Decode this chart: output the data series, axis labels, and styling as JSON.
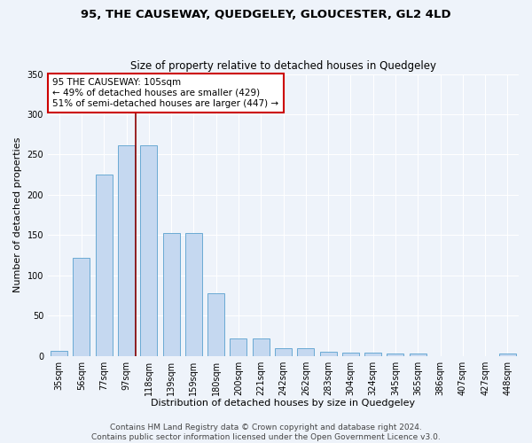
{
  "title": "95, THE CAUSEWAY, QUEDGELEY, GLOUCESTER, GL2 4LD",
  "subtitle": "Size of property relative to detached houses in Quedgeley",
  "xlabel": "Distribution of detached houses by size in Quedgeley",
  "ylabel": "Number of detached properties",
  "categories": [
    "35sqm",
    "56sqm",
    "77sqm",
    "97sqm",
    "118sqm",
    "139sqm",
    "159sqm",
    "180sqm",
    "200sqm",
    "221sqm",
    "242sqm",
    "262sqm",
    "283sqm",
    "304sqm",
    "324sqm",
    "345sqm",
    "365sqm",
    "386sqm",
    "407sqm",
    "427sqm",
    "448sqm"
  ],
  "values": [
    6,
    122,
    225,
    261,
    261,
    153,
    153,
    78,
    22,
    22,
    9,
    9,
    5,
    4,
    4,
    3,
    3,
    0,
    0,
    0,
    3
  ],
  "bar_color": "#c5d8f0",
  "bar_edge_color": "#6aaad4",
  "vline_color": "#8b0000",
  "vline_x": 3.42,
  "annotation_text": "95 THE CAUSEWAY: 105sqm\n← 49% of detached houses are smaller (429)\n51% of semi-detached houses are larger (447) →",
  "annotation_box_color": "white",
  "annotation_box_edge_color": "#cc0000",
  "ylim": [
    0,
    350
  ],
  "yticks": [
    0,
    50,
    100,
    150,
    200,
    250,
    300,
    350
  ],
  "footer": "Contains HM Land Registry data © Crown copyright and database right 2024.\nContains public sector information licensed under the Open Government Licence v3.0.",
  "bg_color": "#eef3fa",
  "grid_color": "#ffffff",
  "title_fontsize": 9.5,
  "subtitle_fontsize": 8.5,
  "xlabel_fontsize": 8,
  "ylabel_fontsize": 8,
  "tick_fontsize": 7,
  "annotation_fontsize": 7.5,
  "footer_fontsize": 6.5,
  "bar_width": 0.75
}
